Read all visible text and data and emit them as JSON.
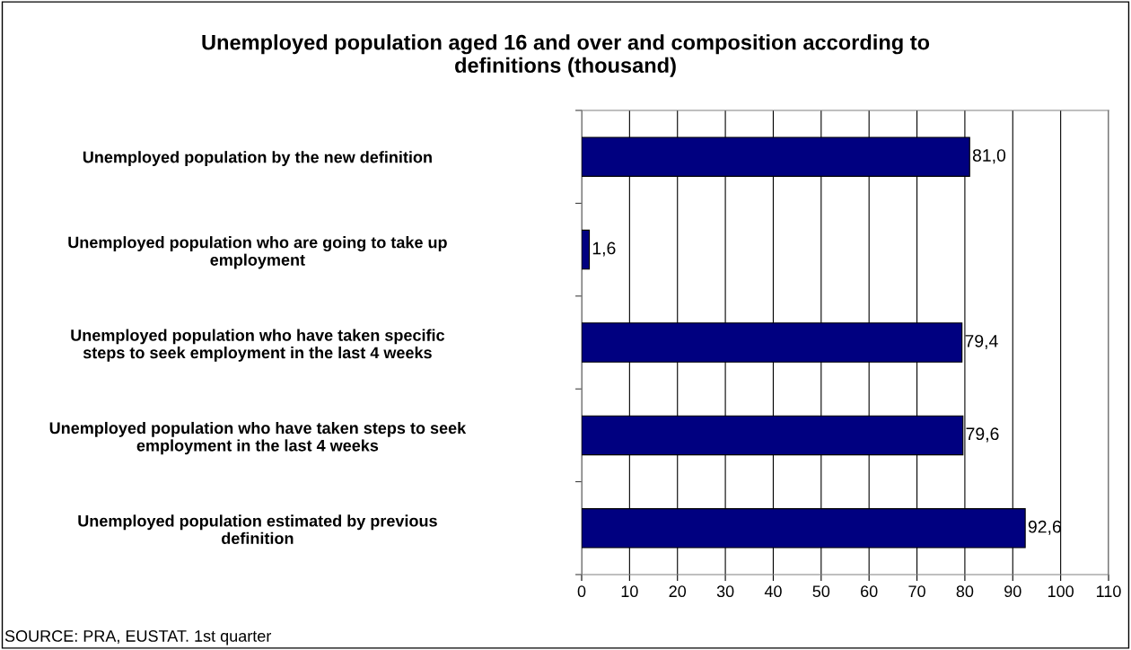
{
  "chart_data": {
    "type": "bar",
    "orientation": "horizontal",
    "title": "Unemployed population aged 16 and over and composition according to\ndefinitions (thousand)",
    "categories": [
      "Unemployed population by the new definition",
      "Unemployed population who are going to take up\nemployment",
      "Unemployed population who have taken specific\nsteps to seek employment in the last 4 weeks",
      "Unemployed population who have taken steps to seek\nemployment in the last 4 weeks",
      "Unemployed population estimated by previous\ndefinition"
    ],
    "values": [
      81.0,
      1.6,
      79.4,
      79.6,
      92.6
    ],
    "value_labels": [
      "81,0",
      "1,6",
      "79,4",
      "79,6",
      "92,6"
    ],
    "color": "#000080",
    "xlim": [
      0,
      110
    ],
    "xticks": [
      0,
      10,
      20,
      30,
      40,
      50,
      60,
      70,
      80,
      90,
      100,
      110
    ],
    "grid": "x",
    "annotations": [
      "SOURCE: PRA, EUSTAT. 1st quarter"
    ]
  }
}
